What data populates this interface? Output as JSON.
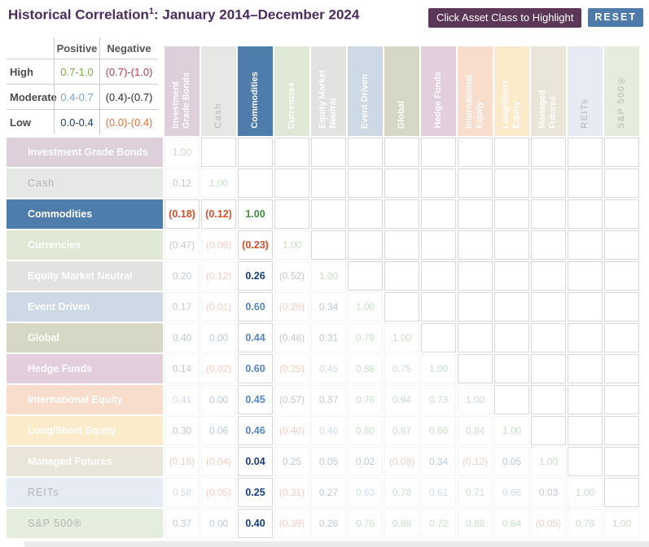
{
  "title": {
    "main": "Historical Correlation",
    "sup": "1",
    "rest": ": January 2014–December 2024"
  },
  "toolbar": {
    "highlight_label": "Click Asset Class to Highlight",
    "reset_label": "RESET"
  },
  "legend": {
    "headers": {
      "positive": "Positive",
      "negative": "Negative"
    },
    "rows": [
      {
        "label": "High",
        "positive": "0.7-1.0",
        "negative": "(0.7)-(1.0)"
      },
      {
        "label": "Moderate",
        "positive": "0.4-0.7",
        "negative": "(0.4)-(0.7)"
      },
      {
        "label": "Low",
        "positive": "0.0-0.4",
        "negative": "(0.0)-(0.4)"
      }
    ]
  },
  "chart_data": {
    "type": "heatmap",
    "title": "Historical Correlation: January 2014–December 2024",
    "categories": [
      "Investment Grade Bonds",
      "Cash",
      "Commodities",
      "Currencies",
      "Equity Market Neutral",
      "Event Driven",
      "Global",
      "Hedge Funds",
      "International Equity",
      "Long/Short Equity",
      "Managed Futures",
      "REITs",
      "S&P 500®"
    ],
    "highlighted": "Commodities",
    "matrix_display": [
      [
        "1.00"
      ],
      [
        "0.12",
        "1.00"
      ],
      [
        "(0.18)",
        "(0.12)",
        "1.00"
      ],
      [
        "(0.47)",
        "(0.06)",
        "(0.23)",
        "1.00"
      ],
      [
        "0.20",
        "(0.12)",
        "0.26",
        "(0.52)",
        "1.00"
      ],
      [
        "0.17",
        "(0.01)",
        "0.60",
        "(0.26)",
        "0.34",
        "1.00"
      ],
      [
        "0.40",
        "0.00",
        "0.44",
        "(0.46)",
        "0.31",
        "0.79",
        "1.00"
      ],
      [
        "0.14",
        "(0.02)",
        "0.60",
        "(0.25)",
        "0.45",
        "0.88",
        "0.75",
        "1.00"
      ],
      [
        "0.41",
        "0.00",
        "0.45",
        "(0.57)",
        "0.37",
        "0.76",
        "0.94",
        "0.73",
        "1.00"
      ],
      [
        "0.30",
        "0.06",
        "0.46",
        "(0.40)",
        "0.46",
        "0.80",
        "0.87",
        "0.86",
        "0.84",
        "1.00"
      ],
      [
        "(0.16)",
        "(0.04)",
        "0.04",
        "0.25",
        "0.05",
        "0.02",
        "(0.08)",
        "0.34",
        "(0.12)",
        "0.05",
        "1.00"
      ],
      [
        "0.58",
        "(0.05)",
        "0.25",
        "(0.31)",
        "0.27",
        "0.63",
        "0.78",
        "0.61",
        "0.71",
        "0.66",
        "0.03",
        "1.00"
      ],
      [
        "0.37",
        "0.00",
        "0.40",
        "(0.39)",
        "0.26",
        "0.75",
        "0.98",
        "0.72",
        "0.86",
        "0.84",
        "(0.05)",
        "0.78",
        "1.00"
      ]
    ]
  },
  "matrix_style": {
    "muted_labels": [
      "Cash",
      "REITs",
      "S&P 500®"
    ]
  },
  "colors": {
    "title": "#4a2a5f",
    "highlight_button_bg": "#5b3656",
    "reset_button_bg": "#4d7aa8",
    "highlight_blue": "#4e7dac",
    "asset_bg": [
      "#ddd0db",
      "#e6e8e6",
      "#4e7dac",
      "#dfe9d5",
      "#e2e3e1",
      "#cdd9e5",
      "#d6d7c5",
      "#e3cedd",
      "#f8ddcd",
      "#fbebca",
      "#e9e5d8",
      "#e7ebf3",
      "#e5eddd"
    ],
    "value_full": {
      "pos_high": "#3f9142",
      "pos_mod": "#5585c5",
      "pos_low": "#163c7d",
      "neg_low": "#d4502c",
      "neg_mod": "#333333",
      "neg_high": "#c13a45"
    },
    "legend_values": {
      "pos_high": "#76b043",
      "pos_mod": "#7ba7cd",
      "pos_low": "#1e3c6e",
      "neg_high": "#c13a45",
      "neg_mod": "#2b2b2b",
      "neg_low": "#e0733b"
    }
  }
}
